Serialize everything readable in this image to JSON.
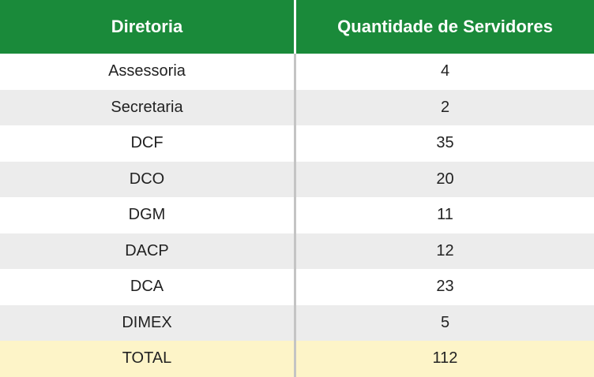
{
  "table": {
    "headers": [
      "Diretoria",
      "Quantidade de Servidores"
    ],
    "rows": [
      {
        "diretoria": "Assessoria",
        "quantidade": "4"
      },
      {
        "diretoria": "Secretaria",
        "quantidade": "2"
      },
      {
        "diretoria": "DCF",
        "quantidade": "35"
      },
      {
        "diretoria": "DCO",
        "quantidade": "20"
      },
      {
        "diretoria": "DGM",
        "quantidade": "11"
      },
      {
        "diretoria": "DACP",
        "quantidade": "12"
      },
      {
        "diretoria": "DCA",
        "quantidade": "23"
      },
      {
        "diretoria": "DIMEX",
        "quantidade": "5"
      }
    ],
    "total": {
      "label": "TOTAL",
      "quantidade": "112"
    }
  },
  "colors": {
    "header_bg": "#1a8a3a",
    "header_text": "#ffffff",
    "stripe_bg": "#ececec",
    "total_bg": "#fdf4c8"
  }
}
